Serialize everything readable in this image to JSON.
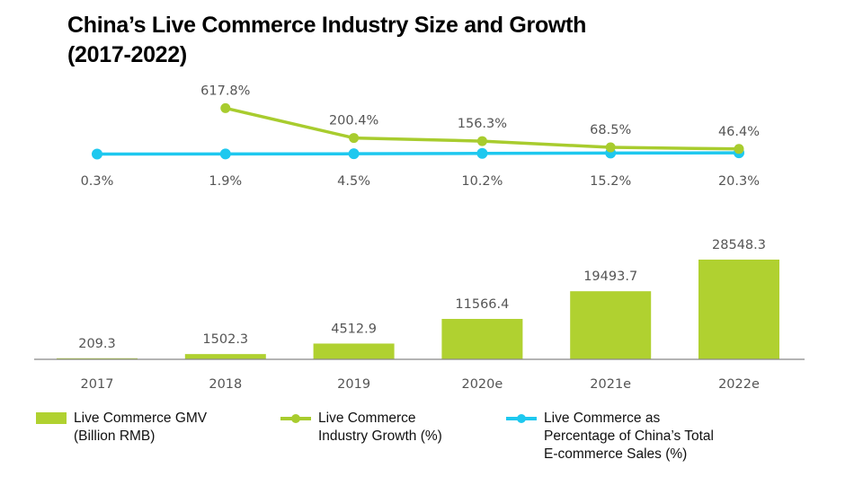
{
  "colors": {
    "gmv": "#b0d130",
    "growth": "#a8cc2e",
    "share": "#1ec8ef",
    "axis": "#888888",
    "label": "#555555"
  },
  "chart_data": {
    "type": "bar",
    "title": "China’s Live Commerce Industry Size and Growth (2017-2022)",
    "title_line1": "China’s Live Commerce Industry Size and Growth",
    "title_line2": "(2017-2022)",
    "categories": [
      "2017",
      "2018",
      "2019",
      "2020e",
      "2021e",
      "2022e"
    ],
    "series": [
      {
        "name": "Live Commerce GMV (Billion RMB)",
        "type": "bar",
        "values": [
          209.3,
          1502.3,
          4512.9,
          11566.4,
          19493.7,
          28548.3
        ],
        "labels": [
          "209.3",
          "1502.3",
          "4512.9",
          "11566.4",
          "19493.7",
          "28548.3"
        ]
      },
      {
        "name": "Live Commerce Industry Growth (%)",
        "type": "line",
        "values": [
          null,
          617.8,
          200.4,
          156.3,
          68.5,
          46.4
        ],
        "labels": [
          "",
          "617.8%",
          "200.4%",
          "156.3%",
          "68.5%",
          "46.4%"
        ]
      },
      {
        "name": "Live Commerce as Percentage of China’s Total E-commerce Sales (%)",
        "type": "line",
        "values": [
          0.3,
          1.9,
          4.5,
          10.2,
          15.2,
          20.3
        ],
        "labels": [
          "0.3%",
          "1.9%",
          "4.5%",
          "10.2%",
          "15.2%",
          "20.3%"
        ]
      }
    ],
    "xlabel": "",
    "ylabel": "",
    "grid": false,
    "legend_position": "bottom",
    "legend": [
      {
        "label": "Live Commerce GMV\n(Billion RMB)",
        "marker": "bar"
      },
      {
        "label": "Live Commerce\nIndustry Growth (%)",
        "marker": "line-dot"
      },
      {
        "label": "Live Commerce as\nPercentage of China’s Total\nE-commerce Sales (%)",
        "marker": "line-dot"
      }
    ]
  }
}
